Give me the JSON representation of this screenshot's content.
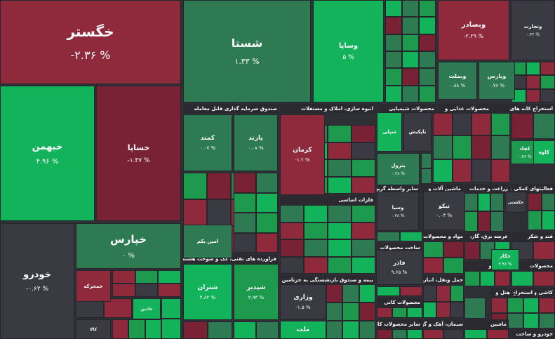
{
  "chart_data": {
    "type": "treemap",
    "colors": {
      "strong_green": "#12b35a",
      "green": "#1e9a4f",
      "light_green": "#2e7a52",
      "red": "#8f2a3c",
      "dark_red": "#7a2235",
      "neutral": "#3a3a42",
      "header": "#2a2a30"
    },
    "sector_labels": [
      "صندوق سرمایه گذاری قابل معامله",
      "انبوه سازی، املاک و مستغلات",
      "محصولات شیمیایی",
      "محصولات غذایی و",
      "استخراج کانه های",
      "فلزات اساسی",
      "سایر واسطه گریهای",
      "ماشین آلات و",
      "زراعت و خدمات",
      "فعالیتهای کمکی به",
      "فراورده های نفتی، کک و سوخت هسته ای",
      "بیمه و صندوق بازنشستگی به جزتامین اجتماعی",
      "ساخت محصولات",
      "مواد و محصولات",
      "عرضه برق، گاز،",
      "قند و شکر",
      "محصولات کانی",
      "سایر محصولات کانی",
      "حمل ونقل، انبارداری",
      "سیمان، آهک و گچ",
      "رایانه و",
      "هتل و",
      "استخراج",
      "محصولات",
      "ماشین",
      "کاشی و",
      "خودرو و ساخت"
    ],
    "tiles": [
      {
        "name": "خگستر",
        "change": "-۲.۳۶ %",
        "value": -2.36,
        "tone": "red"
      },
      {
        "name": "شستا",
        "change": "۱.۳۳ %",
        "value": 1.33,
        "tone": "light_green"
      },
      {
        "name": "وساپا",
        "change": "۵ %",
        "value": 5,
        "tone": "strong_green"
      },
      {
        "name": "وبصادر",
        "change": "-۲.۲۹ %",
        "value": -2.29,
        "tone": "red"
      },
      {
        "name": "خبهمن",
        "change": "۴.۹۶ %",
        "value": 4.96,
        "tone": "strong_green"
      },
      {
        "name": "خساپا",
        "change": "-۱.۴۷ %",
        "value": -1.47,
        "tone": "dark_red"
      },
      {
        "name": "خپارس",
        "change": "۰ %",
        "value": 0,
        "tone": "light_green"
      },
      {
        "name": "خودرو",
        "change": "-۰.۶۲ %",
        "value": -0.62,
        "tone": "neutral"
      },
      {
        "name": "کرمان",
        "change": "-۱.۲ %",
        "value": -1.2,
        "tone": "red"
      },
      {
        "name": "کمند",
        "change": "۰.۰۷ %",
        "value": 0.07,
        "tone": "light_green"
      },
      {
        "name": "پارند",
        "change": "۰.۰۸ %",
        "value": 0.08,
        "tone": "light_green"
      },
      {
        "name": "شپدیر",
        "change": "۲.۹۳ %",
        "value": 2.93,
        "tone": "green"
      },
      {
        "name": "شتران",
        "change": "۴.۸۲ %",
        "value": 4.82,
        "tone": "strong_green"
      },
      {
        "name": "وزاری",
        "change": "-۱.۵ %",
        "value": -1.5,
        "tone": "neutral"
      },
      {
        "name": "ملت",
        "change": "",
        "value": null,
        "tone": "strong_green"
      },
      {
        "name": "فاذر",
        "change": "۹.۶۵ %",
        "value": 9.65,
        "tone": "neutral"
      },
      {
        "name": "تیکو",
        "change": "۰.۰۳ %",
        "value": 0.03,
        "tone": "neutral"
      },
      {
        "name": "وبملت",
        "change": "۰.۸۸ %",
        "value": 0.88,
        "tone": "light_green"
      },
      {
        "name": "وپارس",
        "change": "۰.۷۶ %",
        "value": 0.76,
        "tone": "light_green"
      },
      {
        "name": "وتجارت",
        "change": "۰.۴۲ %",
        "value": 0.42,
        "tone": "neutral"
      },
      {
        "name": "شپلی",
        "change": "",
        "value": null,
        "tone": "strong_green"
      },
      {
        "name": "پترول",
        "change": "۰.۳۸ %",
        "value": 0.38,
        "tone": "light_green"
      },
      {
        "name": "وسپا",
        "change": "۰.۳۸ %",
        "value": 0.38,
        "tone": "neutral"
      },
      {
        "name": "تاپکیش",
        "change": "",
        "value": null,
        "tone": "neutral"
      },
      {
        "name": "کچاد",
        "change": "۰.۳۶ %",
        "value": 0.36,
        "tone": "green"
      },
      {
        "name": "کاوه",
        "change": "",
        "value": null,
        "tone": "strong_green"
      },
      {
        "name": "حکشتی",
        "change": "",
        "value": null,
        "tone": "neutral"
      },
      {
        "name": "خکار",
        "change": "۴.۹۶ %",
        "value": 4.96,
        "tone": "strong_green"
      },
      {
        "name": "خمحرکه",
        "change": "",
        "value": null,
        "tone": "red"
      },
      {
        "name": "خاذین",
        "change": "",
        "value": null,
        "tone": "strong_green"
      },
      {
        "name": "کالا",
        "change": "",
        "value": null,
        "tone": "neutral"
      },
      {
        "name": "امین یکم",
        "change": "",
        "value": null,
        "tone": "light_green"
      }
    ]
  }
}
